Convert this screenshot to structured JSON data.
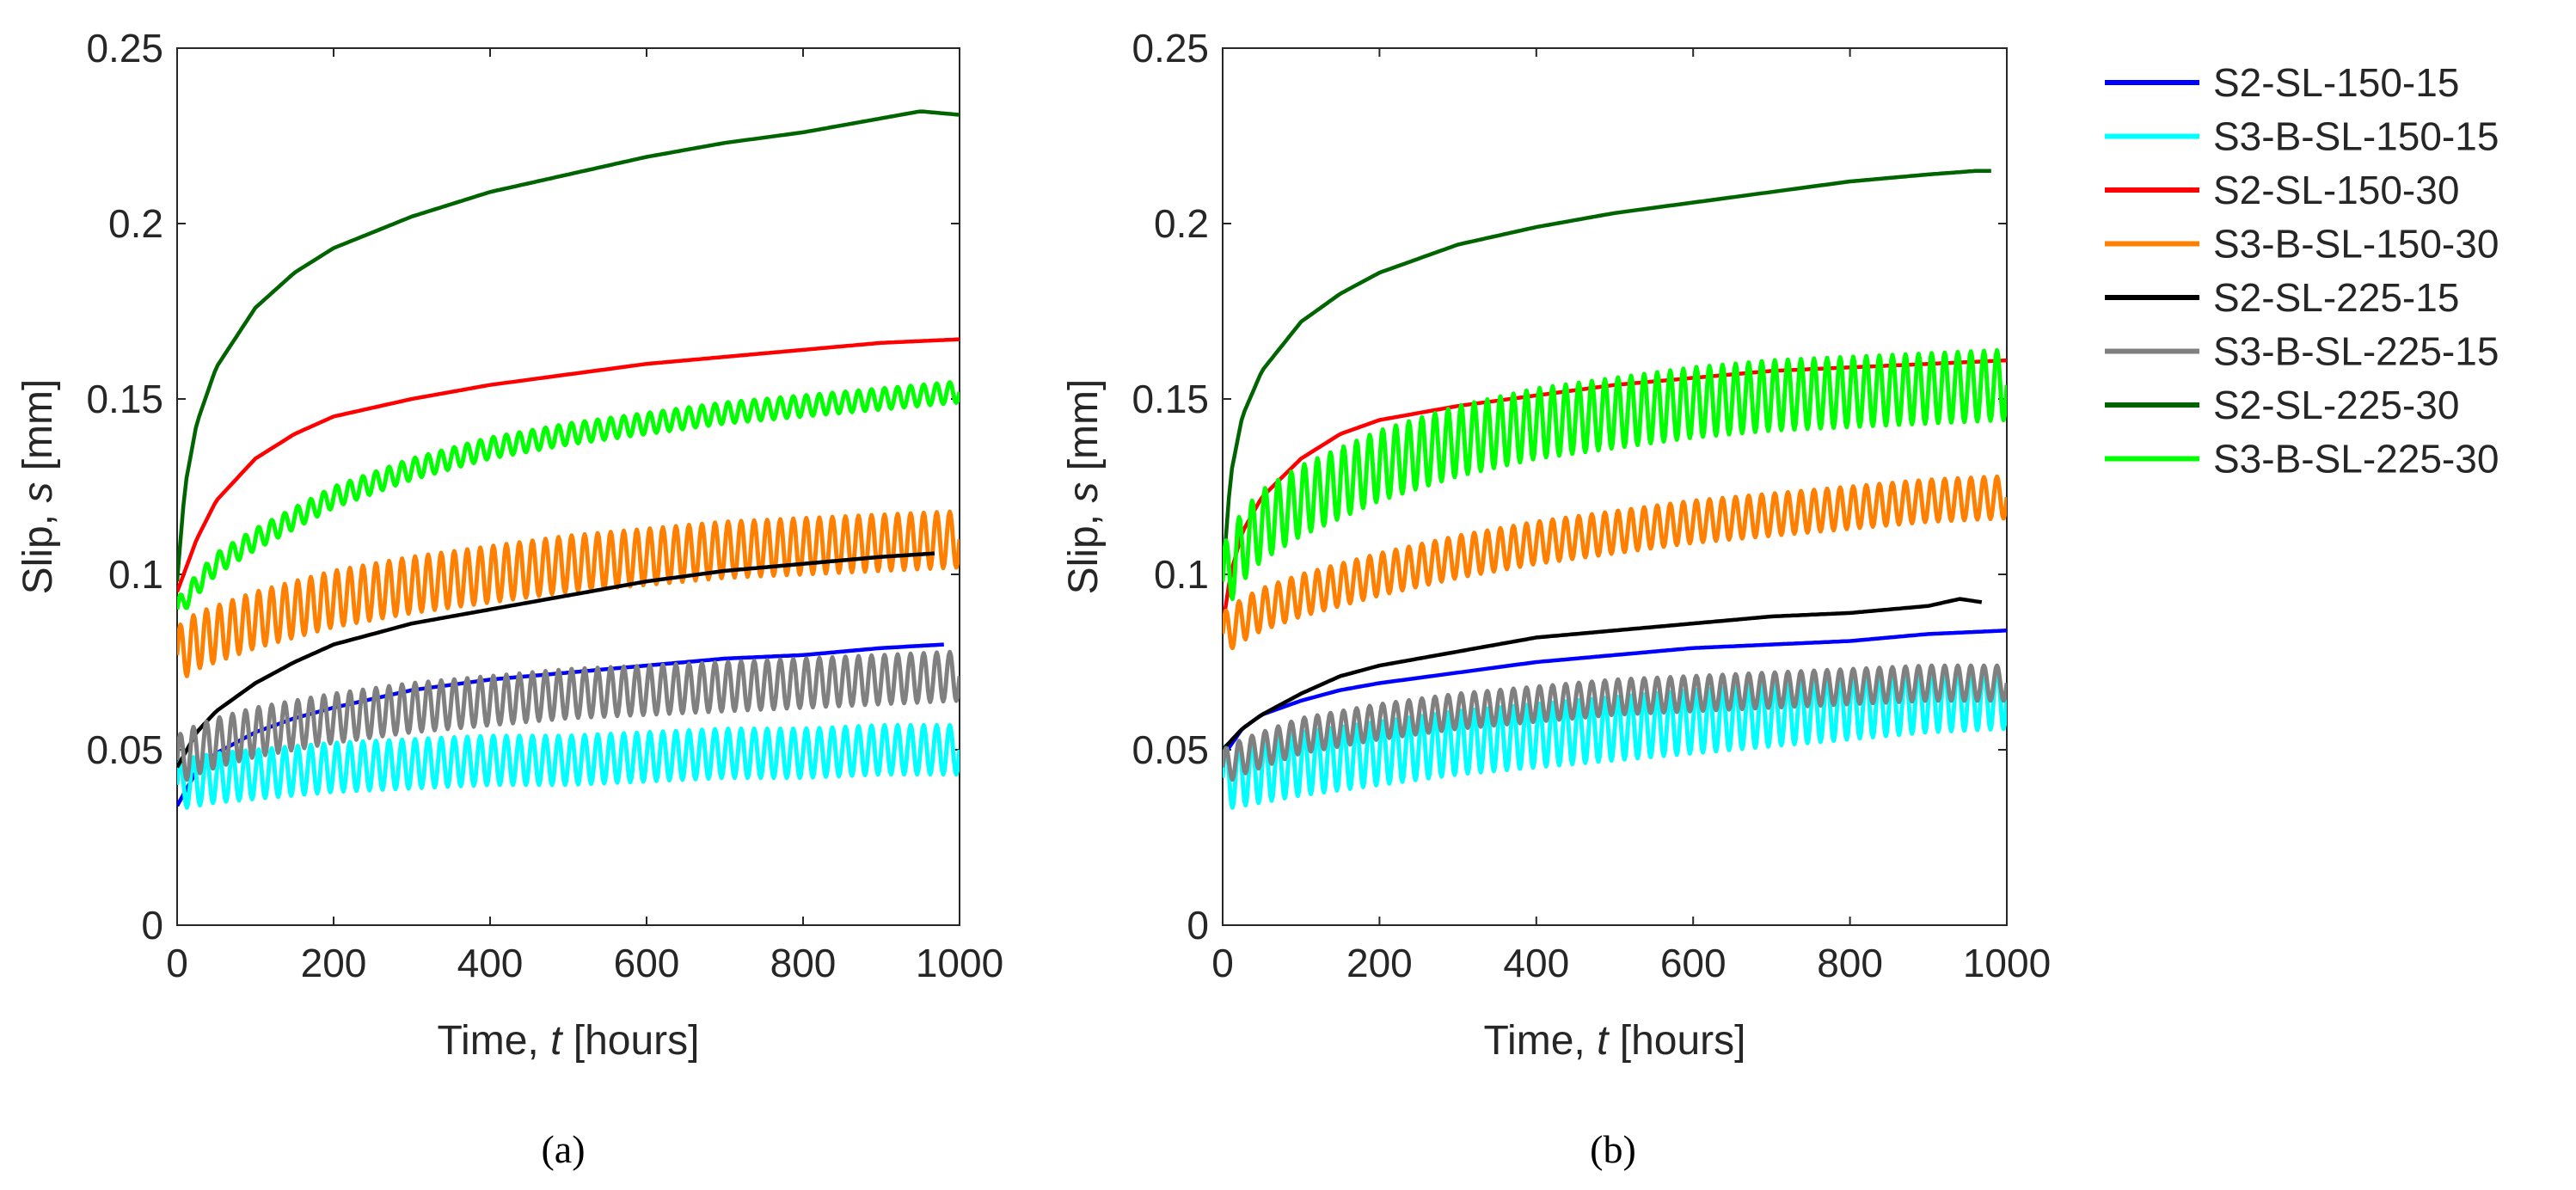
{
  "legend": [
    {
      "name": "S2-SL-150-15",
      "color": "#0000ff"
    },
    {
      "name": "S3-B-SL-150-15",
      "color": "#00ffff"
    },
    {
      "name": "S2-SL-150-30",
      "color": "#ff0000"
    },
    {
      "name": "S3-B-SL-150-30",
      "color": "#ff8000"
    },
    {
      "name": "S2-SL-225-15",
      "color": "#000000"
    },
    {
      "name": "S3-B-SL-225-15",
      "color": "#808080"
    },
    {
      "name": "S2-SL-225-30",
      "color": "#006400"
    },
    {
      "name": "S3-B-SL-225-30",
      "color": "#00ff00"
    }
  ],
  "chart_data": [
    {
      "type": "line",
      "caption": "(a)",
      "xlabel_prefix": "Time, ",
      "xlabel_var": "t",
      "xlabel_suffix": " [hours]",
      "ylabel_prefix": "Slip, ",
      "ylabel_var": "s",
      "ylabel_suffix": " [mm]",
      "xlim": [
        0,
        1000
      ],
      "ylim": [
        0,
        0.25
      ],
      "xticks": [
        0,
        200,
        400,
        600,
        800,
        1000
      ],
      "xtick_labels": [
        "0",
        "200",
        "400",
        "600",
        "800",
        "1000"
      ],
      "yticks": [
        0,
        0.05,
        0.1,
        0.15,
        0.2,
        0.25
      ],
      "ytick_labels": [
        "0",
        "0.05",
        "0.1",
        "0.15",
        "0.2",
        "0.25"
      ],
      "series": [
        {
          "name": "S2-SL-150-15",
          "color": "#0000ff",
          "t_end": 980,
          "oscillation_amplitude": 0,
          "x": [
            0,
            25,
            50,
            100,
            150,
            200,
            300,
            400,
            500,
            600,
            700,
            800,
            900,
            980
          ],
          "y": [
            0.034,
            0.044,
            0.049,
            0.055,
            0.059,
            0.062,
            0.067,
            0.07,
            0.072,
            0.074,
            0.076,
            0.077,
            0.079,
            0.08
          ]
        },
        {
          "name": "S3-B-SL-150-15",
          "color": "#00ffff",
          "t_end": 1000,
          "oscillation_amplitude": 0.007,
          "x": [
            0,
            25,
            50,
            100,
            200,
            300,
            400,
            500,
            600,
            700,
            800,
            900,
            1000
          ],
          "y": [
            0.04,
            0.041,
            0.042,
            0.043,
            0.045,
            0.046,
            0.047,
            0.047,
            0.048,
            0.049,
            0.049,
            0.05,
            0.05
          ]
        },
        {
          "name": "S2-SL-150-30",
          "color": "#ff0000",
          "t_end": 1000,
          "oscillation_amplitude": 0,
          "x": [
            0,
            25,
            50,
            100,
            150,
            200,
            300,
            400,
            500,
            600,
            700,
            800,
            900,
            1000
          ],
          "y": [
            0.095,
            0.11,
            0.121,
            0.133,
            0.14,
            0.145,
            0.15,
            0.154,
            0.157,
            0.16,
            0.162,
            0.164,
            0.166,
            0.167
          ]
        },
        {
          "name": "S3-B-SL-150-30",
          "color": "#ff8000",
          "t_end": 1000,
          "oscillation_amplitude": 0.008,
          "x": [
            0,
            25,
            50,
            100,
            200,
            300,
            400,
            500,
            600,
            700,
            800,
            900,
            1000
          ],
          "y": [
            0.077,
            0.081,
            0.083,
            0.087,
            0.093,
            0.097,
            0.1,
            0.103,
            0.105,
            0.107,
            0.108,
            0.109,
            0.11
          ]
        },
        {
          "name": "S2-SL-225-15",
          "color": "#000000",
          "t_end": 970,
          "oscillation_amplitude": 0,
          "x": [
            0,
            25,
            50,
            100,
            150,
            200,
            300,
            400,
            500,
            600,
            700,
            800,
            900,
            970
          ],
          "y": [
            0.045,
            0.055,
            0.061,
            0.069,
            0.075,
            0.08,
            0.086,
            0.09,
            0.094,
            0.098,
            0.101,
            0.103,
            0.105,
            0.106
          ]
        },
        {
          "name": "S3-B-SL-225-15",
          "color": "#808080",
          "t_end": 1000,
          "oscillation_amplitude": 0.007,
          "x": [
            0,
            25,
            50,
            100,
            200,
            300,
            400,
            500,
            600,
            700,
            800,
            900,
            1000
          ],
          "y": [
            0.047,
            0.05,
            0.052,
            0.055,
            0.059,
            0.062,
            0.064,
            0.066,
            0.067,
            0.068,
            0.069,
            0.07,
            0.071
          ]
        },
        {
          "name": "S2-SL-225-30",
          "color": "#006400",
          "t_end": 1000,
          "oscillation_amplitude": 0,
          "x": [
            0,
            10,
            25,
            50,
            100,
            150,
            200,
            300,
            400,
            500,
            600,
            700,
            800,
            900,
            950,
            1000
          ],
          "y": [
            0.098,
            0.125,
            0.143,
            0.159,
            0.176,
            0.186,
            0.193,
            0.202,
            0.209,
            0.214,
            0.219,
            0.223,
            0.226,
            0.23,
            0.232,
            0.231
          ]
        },
        {
          "name": "S3-B-SL-225-30",
          "color": "#00ff00",
          "t_end": 1000,
          "oscillation_amplitude": 0.003,
          "x": [
            0,
            25,
            50,
            100,
            200,
            300,
            400,
            500,
            600,
            700,
            800,
            900,
            1000
          ],
          "y": [
            0.09,
            0.097,
            0.103,
            0.11,
            0.122,
            0.13,
            0.136,
            0.14,
            0.143,
            0.146,
            0.148,
            0.15,
            0.152
          ]
        }
      ]
    },
    {
      "type": "line",
      "caption": "(b)",
      "xlabel_prefix": "Time, ",
      "xlabel_var": "t",
      "xlabel_suffix": " [hours]",
      "ylabel_prefix": "Slip, ",
      "ylabel_var": "s",
      "ylabel_suffix": " [mm]",
      "xlim": [
        0,
        1000
      ],
      "ylim": [
        0,
        0.25
      ],
      "xticks": [
        0,
        200,
        400,
        600,
        800,
        1000
      ],
      "xtick_labels": [
        "0",
        "200",
        "400",
        "600",
        "800",
        "1000"
      ],
      "yticks": [
        0,
        0.05,
        0.1,
        0.15,
        0.2,
        0.25
      ],
      "ytick_labels": [
        "0",
        "0.05",
        "0.1",
        "0.15",
        "0.2",
        "0.25"
      ],
      "series": [
        {
          "name": "S2-SL-150-15",
          "color": "#0000ff",
          "t_end": 1000,
          "oscillation_amplitude": 0,
          "x": [
            0,
            25,
            50,
            100,
            150,
            200,
            300,
            400,
            500,
            600,
            700,
            800,
            900,
            1000
          ],
          "y": [
            0.048,
            0.056,
            0.06,
            0.064,
            0.067,
            0.069,
            0.072,
            0.075,
            0.077,
            0.079,
            0.08,
            0.081,
            0.083,
            0.084
          ]
        },
        {
          "name": "S3-B-SL-150-15",
          "color": "#00ffff",
          "t_end": 1000,
          "oscillation_amplitude": 0.009,
          "x": [
            0,
            25,
            50,
            100,
            200,
            300,
            400,
            500,
            600,
            700,
            800,
            900,
            1000
          ],
          "y": [
            0.042,
            0.043,
            0.044,
            0.046,
            0.049,
            0.052,
            0.054,
            0.056,
            0.058,
            0.06,
            0.062,
            0.064,
            0.065
          ]
        },
        {
          "name": "S2-SL-150-30",
          "color": "#ff0000",
          "t_end": 1000,
          "oscillation_amplitude": 0,
          "x": [
            0,
            10,
            25,
            50,
            100,
            150,
            200,
            300,
            400,
            500,
            600,
            700,
            800,
            900,
            1000
          ],
          "y": [
            0.085,
            0.1,
            0.112,
            0.122,
            0.133,
            0.14,
            0.144,
            0.148,
            0.151,
            0.154,
            0.156,
            0.158,
            0.159,
            0.16,
            0.161
          ]
        },
        {
          "name": "S3-B-SL-150-30",
          "color": "#ff8000",
          "t_end": 1000,
          "oscillation_amplitude": 0.006,
          "x": [
            0,
            25,
            50,
            100,
            200,
            300,
            400,
            500,
            600,
            700,
            800,
            900,
            1000
          ],
          "y": [
            0.083,
            0.087,
            0.09,
            0.094,
            0.1,
            0.105,
            0.109,
            0.112,
            0.115,
            0.117,
            0.119,
            0.121,
            0.122
          ]
        },
        {
          "name": "S2-SL-225-15",
          "color": "#000000",
          "t_end": 970,
          "oscillation_amplitude": 0,
          "x": [
            0,
            25,
            50,
            100,
            150,
            200,
            300,
            400,
            500,
            600,
            700,
            800,
            900,
            940,
            970
          ],
          "y": [
            0.05,
            0.056,
            0.06,
            0.066,
            0.071,
            0.074,
            0.078,
            0.082,
            0.084,
            0.086,
            0.088,
            0.089,
            0.091,
            0.093,
            0.092
          ]
        },
        {
          "name": "S3-B-SL-225-15",
          "color": "#808080",
          "t_end": 1000,
          "oscillation_amplitude": 0.005,
          "x": [
            0,
            25,
            50,
            100,
            200,
            300,
            400,
            500,
            600,
            700,
            800,
            900,
            1000
          ],
          "y": [
            0.045,
            0.048,
            0.05,
            0.054,
            0.058,
            0.061,
            0.063,
            0.065,
            0.066,
            0.067,
            0.068,
            0.069,
            0.069
          ]
        },
        {
          "name": "S2-SL-225-30",
          "color": "#006400",
          "t_end": 980,
          "oscillation_amplitude": 0,
          "x": [
            0,
            10,
            25,
            50,
            100,
            150,
            200,
            300,
            400,
            500,
            600,
            700,
            800,
            900,
            960,
            980
          ],
          "y": [
            0.098,
            0.128,
            0.145,
            0.158,
            0.172,
            0.18,
            0.186,
            0.194,
            0.199,
            0.203,
            0.206,
            0.209,
            0.212,
            0.214,
            0.215,
            0.215
          ]
        },
        {
          "name": "S3-B-SL-225-30",
          "color": "#00ff00",
          "t_end": 1000,
          "oscillation_amplitude": 0.01,
          "x": [
            0,
            25,
            50,
            100,
            200,
            300,
            400,
            500,
            600,
            700,
            800,
            900,
            1000
          ],
          "y": [
            0.098,
            0.108,
            0.114,
            0.121,
            0.131,
            0.138,
            0.143,
            0.146,
            0.149,
            0.151,
            0.152,
            0.153,
            0.154
          ]
        }
      ]
    }
  ]
}
